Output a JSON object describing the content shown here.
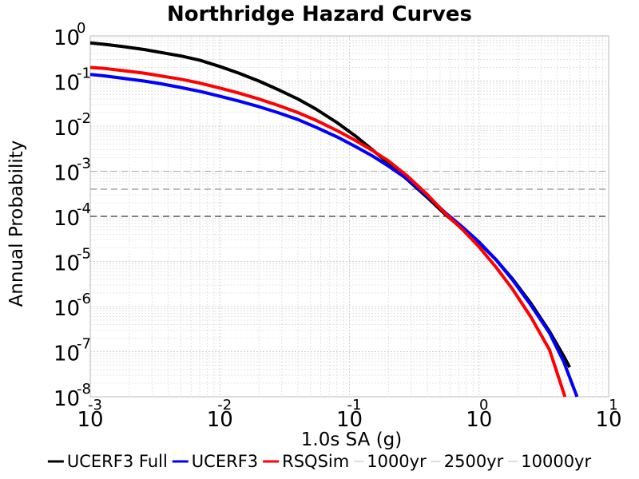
{
  "chart_data": {
    "type": "line",
    "title": "Northridge Hazard Curves",
    "xlabel": "1.0s SA (g)",
    "ylabel": "Annual Probability",
    "x_scale": "log",
    "y_scale": "log",
    "xlim": [
      0.001,
      10
    ],
    "ylim": [
      1e-08,
      1
    ],
    "grid": true,
    "legend_position": "bottom",
    "x_ticks": [
      {
        "base": "10",
        "exp": "-3",
        "value": 0.001
      },
      {
        "base": "10",
        "exp": "-2",
        "value": 0.01
      },
      {
        "base": "10",
        "exp": "-1",
        "value": 0.1
      },
      {
        "base": "10",
        "exp": "0",
        "value": 1
      },
      {
        "base": "10",
        "exp": "1",
        "value": 10
      }
    ],
    "y_ticks": [
      {
        "base": "10",
        "exp": "0",
        "value": 1
      },
      {
        "base": "10",
        "exp": "-1",
        "value": 0.1
      },
      {
        "base": "10",
        "exp": "-2",
        "value": 0.01
      },
      {
        "base": "10",
        "exp": "-3",
        "value": 0.001
      },
      {
        "base": "10",
        "exp": "-4",
        "value": 0.0001
      },
      {
        "base": "10",
        "exp": "-5",
        "value": 1e-05
      },
      {
        "base": "10",
        "exp": "-6",
        "value": 1e-06
      },
      {
        "base": "10",
        "exp": "-7",
        "value": 1e-07
      },
      {
        "base": "10",
        "exp": "-8",
        "value": 1e-08
      }
    ],
    "series": [
      {
        "name": "UCERF3 Full",
        "color": "#000000",
        "style": "solid",
        "x": [
          0.001,
          0.0013,
          0.0018,
          0.0026,
          0.0035,
          0.005,
          0.007,
          0.01,
          0.014,
          0.02,
          0.028,
          0.04,
          0.055,
          0.08,
          0.11,
          0.15,
          0.2,
          0.28,
          0.4,
          0.55,
          0.75,
          1.0,
          1.35,
          1.8,
          2.5,
          3.5,
          4.5,
          5.0
        ],
        "y": [
          0.7,
          0.65,
          0.58,
          0.5,
          0.43,
          0.36,
          0.29,
          0.21,
          0.15,
          0.1,
          0.065,
          0.04,
          0.024,
          0.012,
          0.0062,
          0.003,
          0.0015,
          0.00065,
          0.00026,
          0.00011,
          5.2e-05,
          2.6e-05,
          1.1e-05,
          4.2e-06,
          1.2e-06,
          2.8e-07,
          8e-08,
          4.5e-08
        ]
      },
      {
        "name": "UCERF3",
        "color": "#0000ff",
        "style": "solid",
        "x": [
          0.001,
          0.0013,
          0.0018,
          0.0026,
          0.0035,
          0.005,
          0.007,
          0.01,
          0.014,
          0.02,
          0.028,
          0.04,
          0.055,
          0.08,
          0.11,
          0.15,
          0.2,
          0.28,
          0.4,
          0.55,
          0.75,
          1.0,
          1.35,
          1.8,
          2.5,
          3.5,
          4.5,
          5.7
        ],
        "y": [
          0.14,
          0.13,
          0.115,
          0.1,
          0.087,
          0.072,
          0.059,
          0.046,
          0.036,
          0.027,
          0.02,
          0.014,
          0.0095,
          0.0058,
          0.0036,
          0.0022,
          0.0013,
          0.00067,
          0.00028,
          0.00012,
          5.7e-05,
          2.7e-05,
          1.1e-05,
          4e-06,
          1.1e-06,
          2.6e-07,
          6e-08,
          1e-08
        ]
      },
      {
        "name": "RSQSim",
        "color": "#ff0000",
        "style": "solid",
        "x": [
          0.001,
          0.0013,
          0.0018,
          0.0026,
          0.0035,
          0.005,
          0.007,
          0.01,
          0.014,
          0.02,
          0.028,
          0.04,
          0.055,
          0.08,
          0.11,
          0.15,
          0.2,
          0.28,
          0.4,
          0.55,
          0.75,
          1.0,
          1.35,
          1.8,
          2.5,
          3.5,
          4.6
        ],
        "y": [
          0.2,
          0.19,
          0.17,
          0.15,
          0.13,
          0.11,
          0.09,
          0.07,
          0.054,
          0.04,
          0.029,
          0.02,
          0.0135,
          0.008,
          0.0049,
          0.0029,
          0.0017,
          0.00078,
          0.0003,
          0.000115,
          5e-05,
          2.1e-05,
          7.5e-06,
          2.5e-06,
          6e-07,
          1.1e-07,
          1e-08
        ]
      },
      {
        "name": "1000yr",
        "color": "#aaaaaa",
        "style": "dashed",
        "x": [
          0.001,
          10
        ],
        "y": [
          0.001,
          0.001
        ]
      },
      {
        "name": "2500yr",
        "color": "#777777",
        "style": "dashed",
        "x": [
          0.001,
          10
        ],
        "y": [
          0.0004,
          0.0004
        ]
      },
      {
        "name": "10000yr",
        "color": "#000000",
        "style": "dashed",
        "x": [
          0.001,
          10
        ],
        "y": [
          0.0001,
          0.0001
        ]
      }
    ]
  }
}
